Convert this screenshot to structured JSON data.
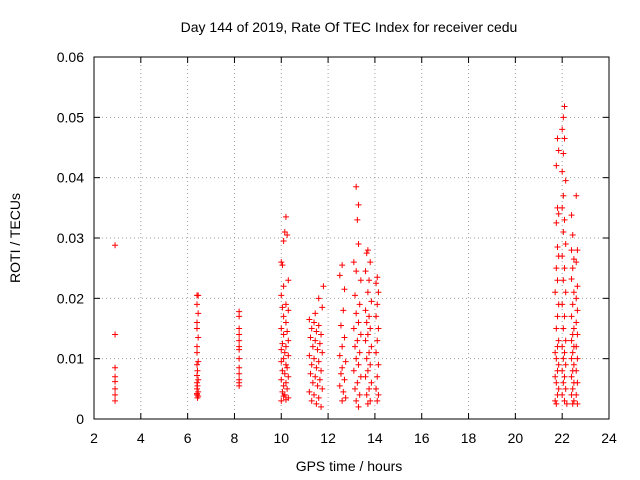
{
  "chart_data": {
    "type": "scatter",
    "title": "Day 144 of 2019, Rate Of TEC Index for receiver cedu",
    "xlabel": "GPS time / hours",
    "ylabel": "ROTI / TECUs",
    "xlim": [
      2,
      24
    ],
    "ylim": [
      0,
      0.06
    ],
    "x_ticks": [
      2,
      4,
      6,
      8,
      10,
      12,
      14,
      16,
      18,
      20,
      22,
      24
    ],
    "x_tick_labels": [
      "2",
      "4",
      "6",
      "8",
      "10",
      "12",
      "14",
      "16",
      "18",
      "20",
      "22",
      "24"
    ],
    "y_ticks": [
      0,
      0.01,
      0.02,
      0.03,
      0.04,
      0.05,
      0.06
    ],
    "y_tick_labels": [
      "0",
      "0.01",
      "0.02",
      "0.03",
      "0.04",
      "0.05",
      "0.06"
    ],
    "grid": true,
    "marker": "+",
    "color": "#ff0000",
    "series": [
      {
        "name": "ROTI",
        "points": [
          [
            2.9,
            0.0288
          ],
          [
            2.9,
            0.014
          ],
          [
            2.9,
            0.0085
          ],
          [
            2.9,
            0.007
          ],
          [
            2.9,
            0.0062
          ],
          [
            2.9,
            0.005
          ],
          [
            2.9,
            0.004
          ],
          [
            2.9,
            0.003
          ],
          [
            6.4,
            0.0205
          ],
          [
            6.45,
            0.0205
          ],
          [
            6.4,
            0.019
          ],
          [
            6.45,
            0.0175
          ],
          [
            6.4,
            0.016
          ],
          [
            6.4,
            0.015
          ],
          [
            6.45,
            0.0135
          ],
          [
            6.4,
            0.012
          ],
          [
            6.4,
            0.011
          ],
          [
            6.45,
            0.0095
          ],
          [
            6.4,
            0.009
          ],
          [
            6.42,
            0.008
          ],
          [
            6.4,
            0.0072
          ],
          [
            6.45,
            0.0065
          ],
          [
            6.4,
            0.006
          ],
          [
            6.42,
            0.0055
          ],
          [
            6.4,
            0.005
          ],
          [
            6.45,
            0.0045
          ],
          [
            6.4,
            0.004
          ],
          [
            6.42,
            0.0035
          ],
          [
            6.45,
            0.0038
          ],
          [
            6.4,
            0.0042
          ],
          [
            8.2,
            0.0178
          ],
          [
            8.2,
            0.017
          ],
          [
            8.2,
            0.015
          ],
          [
            8.2,
            0.014
          ],
          [
            8.2,
            0.013
          ],
          [
            8.2,
            0.012
          ],
          [
            8.2,
            0.0115
          ],
          [
            8.2,
            0.01
          ],
          [
            8.2,
            0.0085
          ],
          [
            8.2,
            0.0075
          ],
          [
            8.2,
            0.0065
          ],
          [
            8.2,
            0.006
          ],
          [
            8.2,
            0.0055
          ],
          [
            10.2,
            0.0335
          ],
          [
            10.15,
            0.031
          ],
          [
            10.25,
            0.0305
          ],
          [
            10.1,
            0.0295
          ],
          [
            10.0,
            0.026
          ],
          [
            10.05,
            0.0255
          ],
          [
            10.3,
            0.023
          ],
          [
            10.1,
            0.022
          ],
          [
            10.0,
            0.0205
          ],
          [
            10.2,
            0.019
          ],
          [
            10.05,
            0.0185
          ],
          [
            10.3,
            0.018
          ],
          [
            10.1,
            0.017
          ],
          [
            10.2,
            0.016
          ],
          [
            10.0,
            0.015
          ],
          [
            10.25,
            0.0145
          ],
          [
            10.1,
            0.014
          ],
          [
            10.3,
            0.013
          ],
          [
            10.05,
            0.0125
          ],
          [
            10.2,
            0.012
          ],
          [
            10.0,
            0.0115
          ],
          [
            10.15,
            0.011
          ],
          [
            10.3,
            0.0105
          ],
          [
            10.1,
            0.01
          ],
          [
            10.0,
            0.0095
          ],
          [
            10.2,
            0.009
          ],
          [
            10.25,
            0.0085
          ],
          [
            10.05,
            0.008
          ],
          [
            10.15,
            0.0075
          ],
          [
            10.3,
            0.007
          ],
          [
            10.0,
            0.0065
          ],
          [
            10.2,
            0.006
          ],
          [
            10.1,
            0.0055
          ],
          [
            10.25,
            0.005
          ],
          [
            10.05,
            0.0045
          ],
          [
            10.15,
            0.004
          ],
          [
            10.3,
            0.0035
          ],
          [
            10.0,
            0.003
          ],
          [
            10.2,
            0.0032
          ],
          [
            10.1,
            0.0038
          ],
          [
            11.2,
            0.0165
          ],
          [
            11.4,
            0.016
          ],
          [
            11.6,
            0.0155
          ],
          [
            11.3,
            0.015
          ],
          [
            11.5,
            0.0145
          ],
          [
            11.7,
            0.014
          ],
          [
            11.25,
            0.0135
          ],
          [
            11.45,
            0.013
          ],
          [
            11.65,
            0.0125
          ],
          [
            11.35,
            0.012
          ],
          [
            11.55,
            0.0115
          ],
          [
            11.75,
            0.011
          ],
          [
            11.2,
            0.0105
          ],
          [
            11.4,
            0.01
          ],
          [
            11.6,
            0.0095
          ],
          [
            11.3,
            0.009
          ],
          [
            11.5,
            0.0085
          ],
          [
            11.7,
            0.008
          ],
          [
            11.25,
            0.0075
          ],
          [
            11.45,
            0.007
          ],
          [
            11.65,
            0.0065
          ],
          [
            11.35,
            0.006
          ],
          [
            11.55,
            0.0055
          ],
          [
            11.75,
            0.005
          ],
          [
            11.2,
            0.0045
          ],
          [
            11.4,
            0.004
          ],
          [
            11.6,
            0.0035
          ],
          [
            11.3,
            0.003
          ],
          [
            11.5,
            0.0025
          ],
          [
            11.7,
            0.002
          ],
          [
            11.8,
            0.022
          ],
          [
            11.6,
            0.02
          ],
          [
            11.75,
            0.0185
          ],
          [
            11.45,
            0.0175
          ],
          [
            12.6,
            0.0255
          ],
          [
            12.5,
            0.0238
          ],
          [
            12.7,
            0.0215
          ],
          [
            12.65,
            0.018
          ],
          [
            12.55,
            0.0155
          ],
          [
            12.7,
            0.0135
          ],
          [
            12.6,
            0.012
          ],
          [
            12.5,
            0.0105
          ],
          [
            12.75,
            0.0095
          ],
          [
            12.6,
            0.0085
          ],
          [
            12.55,
            0.0075
          ],
          [
            12.7,
            0.0065
          ],
          [
            12.5,
            0.0055
          ],
          [
            12.65,
            0.0045
          ],
          [
            12.75,
            0.0035
          ],
          [
            12.6,
            0.003
          ],
          [
            13.2,
            0.0385
          ],
          [
            13.3,
            0.0355
          ],
          [
            13.25,
            0.033
          ],
          [
            13.3,
            0.029
          ],
          [
            13.1,
            0.026
          ],
          [
            13.2,
            0.0245
          ],
          [
            13.4,
            0.023
          ],
          [
            13.15,
            0.0205
          ],
          [
            13.35,
            0.019
          ],
          [
            13.2,
            0.0175
          ],
          [
            13.3,
            0.016
          ],
          [
            13.1,
            0.015
          ],
          [
            13.4,
            0.014
          ],
          [
            13.25,
            0.013
          ],
          [
            13.15,
            0.012
          ],
          [
            13.35,
            0.011
          ],
          [
            13.2,
            0.01
          ],
          [
            13.3,
            0.009
          ],
          [
            13.1,
            0.008
          ],
          [
            13.4,
            0.007
          ],
          [
            13.25,
            0.006
          ],
          [
            13.15,
            0.005
          ],
          [
            13.35,
            0.004
          ],
          [
            13.2,
            0.003
          ],
          [
            13.3,
            0.002
          ],
          [
            13.7,
            0.028
          ],
          [
            13.65,
            0.0275
          ],
          [
            13.8,
            0.026
          ],
          [
            13.6,
            0.0245
          ],
          [
            13.75,
            0.023
          ],
          [
            13.7,
            0.021
          ],
          [
            13.85,
            0.0195
          ],
          [
            13.6,
            0.018
          ],
          [
            13.75,
            0.017
          ],
          [
            13.65,
            0.016
          ],
          [
            13.8,
            0.015
          ],
          [
            13.7,
            0.014
          ],
          [
            13.6,
            0.013
          ],
          [
            13.85,
            0.012
          ],
          [
            13.75,
            0.011
          ],
          [
            13.65,
            0.01
          ],
          [
            13.8,
            0.009
          ],
          [
            13.7,
            0.008
          ],
          [
            13.6,
            0.007
          ],
          [
            13.85,
            0.006
          ],
          [
            13.75,
            0.005
          ],
          [
            13.65,
            0.004
          ],
          [
            13.8,
            0.003
          ],
          [
            13.7,
            0.0025
          ],
          [
            14.1,
            0.0235
          ],
          [
            14.05,
            0.0225
          ],
          [
            14.15,
            0.021
          ],
          [
            14.1,
            0.019
          ],
          [
            14.05,
            0.017
          ],
          [
            14.15,
            0.015
          ],
          [
            14.1,
            0.013
          ],
          [
            14.05,
            0.011
          ],
          [
            14.15,
            0.009
          ],
          [
            14.1,
            0.007
          ],
          [
            14.05,
            0.005
          ],
          [
            14.15,
            0.004
          ],
          [
            14.1,
            0.003
          ],
          [
            21.8,
            0.0465
          ],
          [
            21.85,
            0.0445
          ],
          [
            21.75,
            0.042
          ],
          [
            21.8,
            0.035
          ],
          [
            21.85,
            0.034
          ],
          [
            21.75,
            0.0325
          ],
          [
            21.8,
            0.0285
          ],
          [
            21.85,
            0.027
          ],
          [
            21.75,
            0.025
          ],
          [
            21.8,
            0.023
          ],
          [
            21.7,
            0.021
          ],
          [
            21.85,
            0.019
          ],
          [
            21.8,
            0.017
          ],
          [
            21.75,
            0.015
          ],
          [
            21.85,
            0.013
          ],
          [
            21.8,
            0.012
          ],
          [
            21.7,
            0.011
          ],
          [
            21.75,
            0.01
          ],
          [
            21.85,
            0.009
          ],
          [
            21.8,
            0.008
          ],
          [
            21.7,
            0.007
          ],
          [
            21.75,
            0.006
          ],
          [
            21.85,
            0.005
          ],
          [
            21.8,
            0.004
          ],
          [
            21.7,
            0.003
          ],
          [
            21.75,
            0.0025
          ],
          [
            22.1,
            0.0518
          ],
          [
            22.05,
            0.05
          ],
          [
            22.0,
            0.048
          ],
          [
            22.1,
            0.0465
          ],
          [
            22.05,
            0.044
          ],
          [
            22.0,
            0.041
          ],
          [
            22.15,
            0.0395
          ],
          [
            22.05,
            0.037
          ],
          [
            22.0,
            0.035
          ],
          [
            22.1,
            0.033
          ],
          [
            22.05,
            0.031
          ],
          [
            22.15,
            0.029
          ],
          [
            22.0,
            0.027
          ],
          [
            22.1,
            0.025
          ],
          [
            22.05,
            0.023
          ],
          [
            22.15,
            0.021
          ],
          [
            22.0,
            0.019
          ],
          [
            22.1,
            0.017
          ],
          [
            22.05,
            0.015
          ],
          [
            22.15,
            0.013
          ],
          [
            22.0,
            0.012
          ],
          [
            22.1,
            0.011
          ],
          [
            22.05,
            0.01
          ],
          [
            22.15,
            0.009
          ],
          [
            22.0,
            0.008
          ],
          [
            22.1,
            0.007
          ],
          [
            22.05,
            0.006
          ],
          [
            22.15,
            0.005
          ],
          [
            22.0,
            0.004
          ],
          [
            22.1,
            0.003
          ],
          [
            22.2,
            0.0025
          ],
          [
            22.4,
            0.0338
          ],
          [
            22.45,
            0.0305
          ],
          [
            22.4,
            0.028
          ],
          [
            22.5,
            0.0265
          ],
          [
            22.45,
            0.025
          ],
          [
            22.4,
            0.0232
          ],
          [
            22.5,
            0.021
          ],
          [
            22.45,
            0.019
          ],
          [
            22.4,
            0.017
          ],
          [
            22.5,
            0.015
          ],
          [
            22.45,
            0.014
          ],
          [
            22.4,
            0.013
          ],
          [
            22.5,
            0.012
          ],
          [
            22.45,
            0.011
          ],
          [
            22.4,
            0.01
          ],
          [
            22.5,
            0.009
          ],
          [
            22.45,
            0.008
          ],
          [
            22.4,
            0.007
          ],
          [
            22.5,
            0.006
          ],
          [
            22.45,
            0.005
          ],
          [
            22.4,
            0.004
          ],
          [
            22.5,
            0.003
          ],
          [
            22.45,
            0.0025
          ],
          [
            22.6,
            0.037
          ],
          [
            22.65,
            0.028
          ],
          [
            22.6,
            0.026
          ],
          [
            22.65,
            0.022
          ],
          [
            22.6,
            0.02
          ],
          [
            22.65,
            0.018
          ],
          [
            22.6,
            0.016
          ],
          [
            22.65,
            0.014
          ],
          [
            22.6,
            0.012
          ],
          [
            22.65,
            0.01
          ],
          [
            22.6,
            0.008
          ],
          [
            22.65,
            0.006
          ],
          [
            22.6,
            0.004
          ],
          [
            22.65,
            0.0025
          ]
        ]
      }
    ]
  }
}
